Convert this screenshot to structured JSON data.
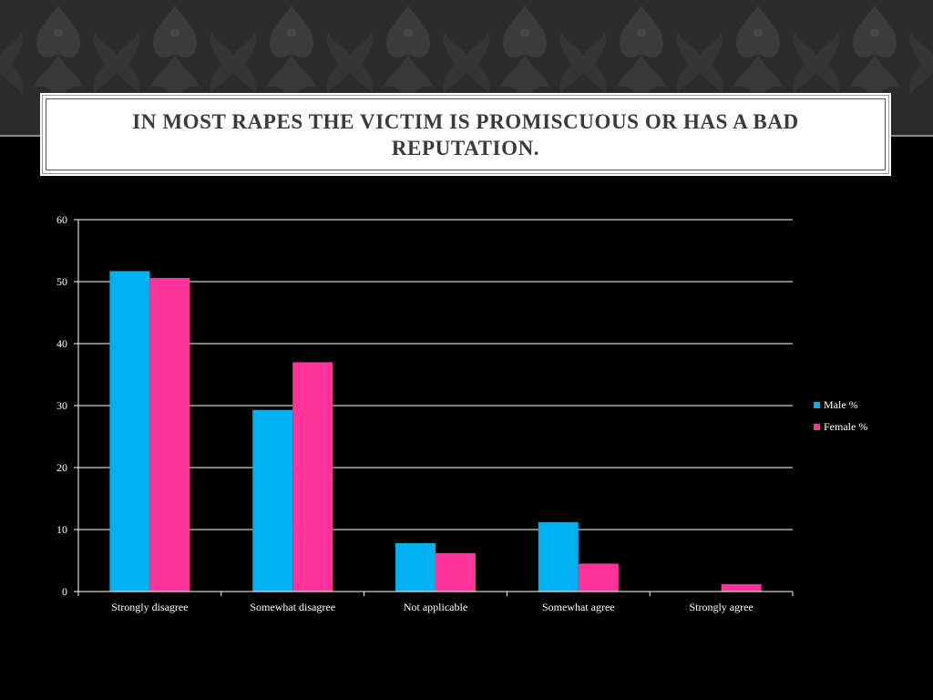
{
  "slide": {
    "title": "In most rapes the victim is promiscuous or has a bad reputation."
  },
  "colors": {
    "background": "#000000",
    "banner": "#2b2b2b",
    "male": "#00b0f0",
    "female": "#ff3399",
    "text": "#ffffff"
  },
  "chart_data": {
    "type": "bar",
    "title": "",
    "xlabel": "",
    "ylabel": "",
    "ylim": [
      0,
      60
    ],
    "yticks": [
      0,
      10,
      20,
      30,
      40,
      50,
      60
    ],
    "grid": true,
    "legend_position": "right",
    "categories": [
      "Strongly disagree",
      "Somewhat disagree",
      "Not applicable",
      "Somewhat agree",
      "Strongly agree"
    ],
    "series": [
      {
        "name": "Male %",
        "color": "#00b0f0",
        "values": [
          51.7,
          29.3,
          7.8,
          11.2,
          0
        ]
      },
      {
        "name": "Female %",
        "color": "#ff3399",
        "values": [
          50.6,
          37.0,
          6.2,
          4.5,
          1.2
        ]
      }
    ]
  }
}
